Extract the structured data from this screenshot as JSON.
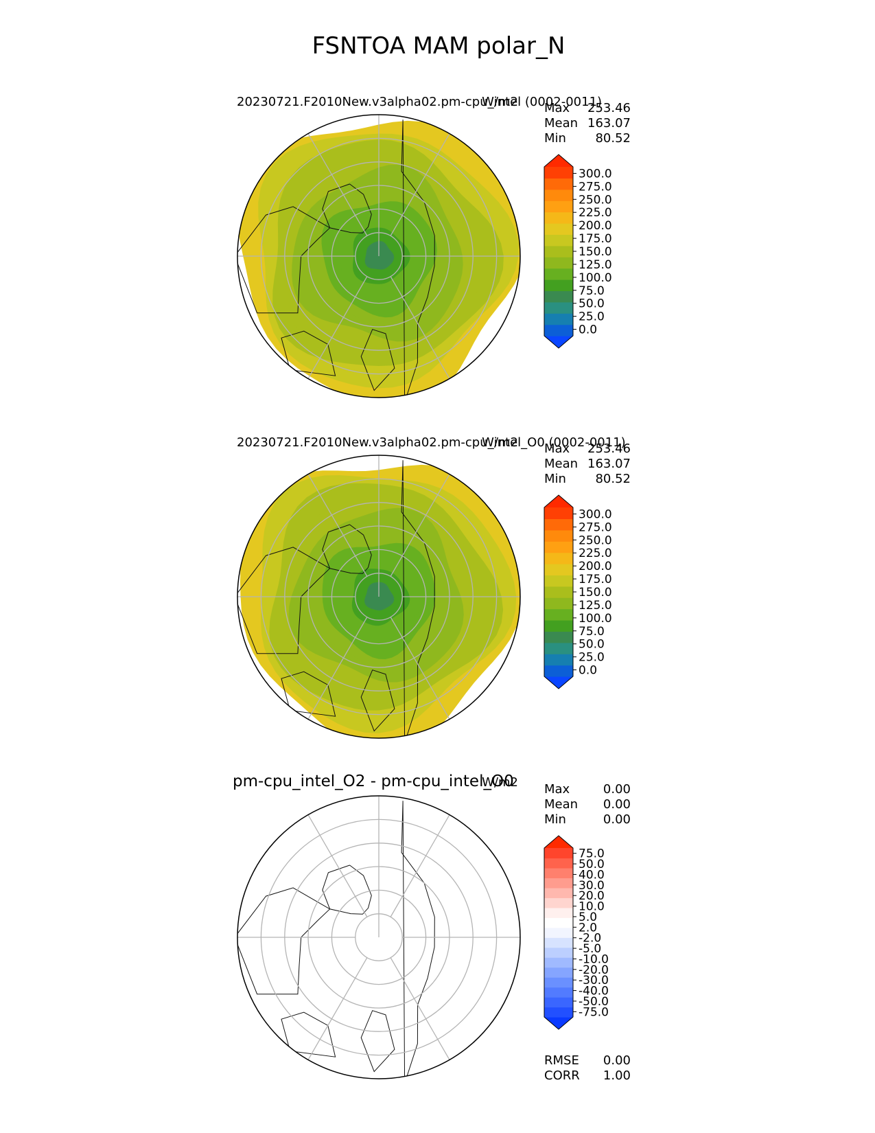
{
  "figure": {
    "title": "FSNTOA MAM polar_N"
  },
  "colors": {
    "main_levels": [
      "#0a46ff",
      "#0c5fd6",
      "#167fb0",
      "#2a9080",
      "#3a8a50",
      "#43a020",
      "#67b020",
      "#8fb81e",
      "#aabe1c",
      "#c8c820",
      "#e4c820",
      "#f5b818",
      "#ffa012",
      "#ff8a0c",
      "#ff6a08",
      "#ff4004",
      "#ff2a00"
    ],
    "diff_levels": [
      "#0a3aff",
      "#2250ff",
      "#3a66ff",
      "#527bff",
      "#6a90ff",
      "#85a5ff",
      "#a0baff",
      "#bccfff",
      "#d7e3ff",
      "#f2f5ff",
      "#ffffff",
      "#fff0ee",
      "#ffd5cf",
      "#ffb8ae",
      "#ff9c8e",
      "#ff806d",
      "#ff634c",
      "#ff452c",
      "#ff2a00"
    ],
    "land_outline": "#111111",
    "grid": "#b4b4b4"
  },
  "chart_data": [
    {
      "type": "heatmap",
      "projection": "north polar stereographic",
      "title": "20230721.F2010New.v3alpha02.pm-cpu_intel (0002-0011)",
      "units": "W/m2",
      "stats": [
        {
          "label": "Max",
          "value": "253.46"
        },
        {
          "label": "Mean",
          "value": "163.07"
        },
        {
          "label": "Min",
          "value": "80.52"
        }
      ],
      "colorbar": {
        "levels": [
          0,
          25,
          50,
          75,
          100,
          125,
          150,
          175,
          200,
          225,
          250,
          275,
          300
        ],
        "ticklabels": [
          "300.0",
          "275.0",
          "250.0",
          "225.0",
          "200.0",
          "175.0",
          "150.0",
          "125.0",
          "100.0",
          "75.0",
          "50.0",
          "25.0",
          "0.0"
        ],
        "extend": "both"
      },
      "field": {
        "pole_value": 85,
        "rim_value": 225,
        "range": [
          80.52,
          253.46
        ]
      }
    },
    {
      "type": "heatmap",
      "projection": "north polar stereographic",
      "title": "20230721.F2010New.v3alpha02.pm-cpu_intel_O0 (0002-0011)",
      "units": "W/m2",
      "stats": [
        {
          "label": "Max",
          "value": "253.46"
        },
        {
          "label": "Mean",
          "value": "163.07"
        },
        {
          "label": "Min",
          "value": "80.52"
        }
      ],
      "colorbar": {
        "levels": [
          0,
          25,
          50,
          75,
          100,
          125,
          150,
          175,
          200,
          225,
          250,
          275,
          300
        ],
        "ticklabels": [
          "300.0",
          "275.0",
          "250.0",
          "225.0",
          "200.0",
          "175.0",
          "150.0",
          "125.0",
          "100.0",
          "75.0",
          "50.0",
          "25.0",
          "0.0"
        ],
        "extend": "both"
      },
      "field": {
        "pole_value": 85,
        "rim_value": 225,
        "range": [
          80.52,
          253.46
        ]
      }
    },
    {
      "type": "heatmap",
      "projection": "north polar stereographic",
      "title": "pm-cpu_intel_O2 - pm-cpu_intel_O0",
      "units": "W/m2",
      "stats": [
        {
          "label": "Max",
          "value": "0.00"
        },
        {
          "label": "Mean",
          "value": "0.00"
        },
        {
          "label": "Min",
          "value": "0.00"
        }
      ],
      "colorbar": {
        "levels": [
          -75,
          -50,
          -40,
          -30,
          -20,
          -10,
          -5,
          -2,
          2,
          5,
          10,
          20,
          30,
          40,
          50,
          75
        ],
        "ticklabels": [
          "75.0",
          "50.0",
          "40.0",
          "30.0",
          "20.0",
          "10.0",
          "5.0",
          "2.0",
          "-2.0",
          "-5.0",
          "-10.0",
          "-20.0",
          "-30.0",
          "-40.0",
          "-50.0",
          "-75.0"
        ],
        "extend": "both"
      },
      "field": {
        "pole_value": 0,
        "rim_value": 0,
        "range": [
          0,
          0
        ]
      },
      "metrics": [
        {
          "label": "RMSE",
          "value": "0.00"
        },
        {
          "label": "CORR",
          "value": "1.00"
        }
      ]
    }
  ]
}
